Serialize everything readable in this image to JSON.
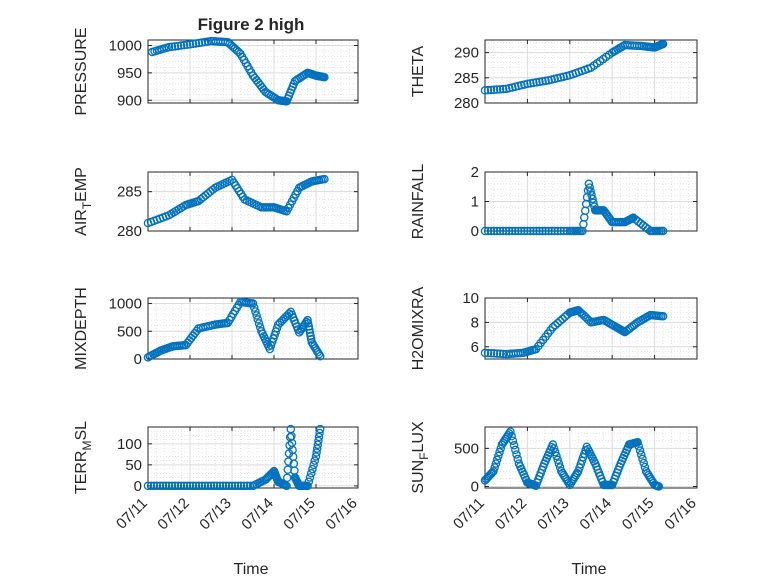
{
  "figure_title": "Figure 2 high",
  "marker_color": "#0072BD",
  "chart_data": [
    {
      "type": "scatter",
      "ylabel": "PRESSURE",
      "xlabel": "",
      "ylim": [
        895,
        1010
      ],
      "yticks": [
        900,
        950,
        1000
      ],
      "xlim": [
        0,
        5
      ],
      "xticks": [
        0,
        1,
        2,
        3,
        4,
        5
      ],
      "xtick_labels": [
        "",
        "",
        "",
        "",
        "",
        ""
      ],
      "grid": true,
      "minor_grid": true,
      "series": [
        {
          "x": [
            0.1,
            0.5,
            1.0,
            1.5,
            1.9,
            2.2,
            2.5,
            2.8,
            3.1,
            3.3,
            3.5,
            3.8,
            4.0,
            4.2
          ],
          "y": [
            988,
            997,
            1002,
            1008,
            1006,
            985,
            945,
            915,
            900,
            898,
            935,
            950,
            945,
            942
          ]
        }
      ]
    },
    {
      "type": "scatter",
      "ylabel": "THETA",
      "xlabel": "",
      "ylim": [
        280,
        292.5
      ],
      "yticks": [
        280,
        285,
        290
      ],
      "xlim": [
        0,
        5
      ],
      "xticks": [
        0,
        1,
        2,
        3,
        4,
        5
      ],
      "xtick_labels": [
        "",
        "",
        "",
        "",
        "",
        ""
      ],
      "grid": true,
      "minor_grid": true,
      "series": [
        {
          "x": [
            0.0,
            0.5,
            1.0,
            1.5,
            2.0,
            2.5,
            3.0,
            3.3,
            3.7,
            4.0,
            4.2
          ],
          "y": [
            282.5,
            282.8,
            283.8,
            284.5,
            285.5,
            287.0,
            290.0,
            291.5,
            291.3,
            291.0,
            291.7
          ]
        }
      ]
    },
    {
      "type": "scatter",
      "ylabel": "AIR_TEMP",
      "xlabel": "",
      "ylim": [
        280,
        287.5
      ],
      "yticks": [
        280,
        285
      ],
      "xlim": [
        0,
        5
      ],
      "xticks": [
        0,
        1,
        2,
        3,
        4,
        5
      ],
      "xtick_labels": [
        "",
        "",
        "",
        "",
        "",
        ""
      ],
      "grid": true,
      "minor_grid": true,
      "series": [
        {
          "x": [
            0.0,
            0.5,
            0.9,
            1.2,
            1.6,
            2.0,
            2.3,
            2.7,
            3.0,
            3.3,
            3.6,
            3.9,
            4.2
          ],
          "y": [
            281,
            282,
            283.3,
            283.8,
            285.5,
            286.5,
            284,
            283,
            283,
            282.5,
            285.5,
            286.3,
            286.6
          ]
        }
      ]
    },
    {
      "type": "scatter",
      "ylabel": "RAINFALL",
      "xlabel": "",
      "ylim": [
        0,
        2
      ],
      "yticks": [
        0,
        1,
        2
      ],
      "xlim": [
        0,
        5
      ],
      "xticks": [
        0,
        1,
        2,
        3,
        4,
        5
      ],
      "xtick_labels": [
        "",
        "",
        "",
        "",
        "",
        ""
      ],
      "grid": true,
      "minor_grid": true,
      "series": [
        {
          "x": [
            0.0,
            0.5,
            1.0,
            1.5,
            2.0,
            2.3,
            2.45,
            2.6,
            2.8,
            3.0,
            3.3,
            3.5,
            3.9,
            4.2
          ],
          "y": [
            0,
            0,
            0,
            0,
            0,
            0,
            1.6,
            0.7,
            0.7,
            0.3,
            0.3,
            0.45,
            0,
            0
          ]
        }
      ]
    },
    {
      "type": "scatter",
      "ylabel": "MIXDEPTH",
      "xlabel": "",
      "ylim": [
        0,
        1100
      ],
      "yticks": [
        0,
        500,
        1000
      ],
      "xlim": [
        0,
        5
      ],
      "xticks": [
        0,
        1,
        2,
        3,
        4,
        5
      ],
      "xtick_labels": [
        "",
        "",
        "",
        "",
        "",
        ""
      ],
      "grid": true,
      "minor_grid": true,
      "series": [
        {
          "x": [
            0.0,
            0.3,
            0.6,
            0.9,
            1.2,
            1.6,
            1.9,
            2.2,
            2.5,
            2.7,
            2.9,
            3.1,
            3.4,
            3.6,
            3.8,
            3.9,
            4.1
          ],
          "y": [
            30,
            150,
            230,
            250,
            550,
            620,
            650,
            1030,
            1000,
            500,
            180,
            620,
            850,
            480,
            700,
            300,
            50
          ]
        }
      ]
    },
    {
      "type": "scatter",
      "ylabel": "H2OMIXRA",
      "xlabel": "",
      "ylim": [
        5,
        10
      ],
      "yticks": [
        6,
        8,
        10
      ],
      "xlim": [
        0,
        5
      ],
      "xticks": [
        0,
        1,
        2,
        3,
        4,
        5
      ],
      "xtick_labels": [
        "",
        "",
        "",
        "",
        "",
        ""
      ],
      "grid": true,
      "minor_grid": true,
      "series": [
        {
          "x": [
            0.0,
            0.5,
            0.9,
            1.2,
            1.6,
            2.0,
            2.2,
            2.5,
            2.8,
            3.1,
            3.3,
            3.6,
            3.9,
            4.2
          ],
          "y": [
            5.5,
            5.4,
            5.5,
            5.8,
            7.6,
            8.8,
            9.0,
            8.0,
            8.2,
            7.6,
            7.2,
            8.0,
            8.6,
            8.5
          ]
        }
      ]
    },
    {
      "type": "scatter",
      "ylabel": "TERR_MSL",
      "xlabel": "Time",
      "ylim": [
        -5,
        140
      ],
      "yticks": [
        0,
        50,
        100
      ],
      "xlim": [
        0,
        5
      ],
      "xticks": [
        0,
        1,
        2,
        3,
        4,
        5
      ],
      "xtick_labels": [
        "07/11",
        "07/12",
        "07/13",
        "07/14",
        "07/15",
        "07/16"
      ],
      "grid": true,
      "minor_grid": true,
      "series": [
        {
          "x": [
            0.0,
            0.5,
            1.0,
            1.5,
            2.0,
            2.5,
            2.8,
            3.0,
            3.1,
            3.3,
            3.4,
            3.5,
            3.6,
            3.8,
            4.0,
            4.1
          ],
          "y": [
            0,
            0,
            0,
            0,
            0,
            0,
            15,
            35,
            10,
            0,
            135,
            20,
            0,
            0,
            70,
            135
          ]
        }
      ]
    },
    {
      "type": "scatter",
      "ylabel": "SUN_FLUX",
      "xlabel": "Time",
      "ylim": [
        -20,
        780
      ],
      "yticks": [
        0,
        500
      ],
      "xlim": [
        0,
        5
      ],
      "xticks": [
        0,
        1,
        2,
        3,
        4,
        5
      ],
      "xtick_labels": [
        "07/11",
        "07/12",
        "07/13",
        "07/14",
        "07/15",
        "07/16"
      ],
      "grid": true,
      "minor_grid": true,
      "series": [
        {
          "x": [
            0.0,
            0.2,
            0.4,
            0.6,
            0.8,
            1.0,
            1.2,
            1.4,
            1.6,
            1.8,
            2.0,
            2.2,
            2.4,
            2.6,
            2.8,
            3.0,
            3.2,
            3.4,
            3.6,
            3.8,
            4.0,
            4.1
          ],
          "y": [
            80,
            200,
            550,
            720,
            300,
            50,
            10,
            300,
            550,
            200,
            20,
            200,
            520,
            300,
            20,
            20,
            300,
            550,
            580,
            200,
            20,
            0
          ]
        }
      ]
    }
  ]
}
